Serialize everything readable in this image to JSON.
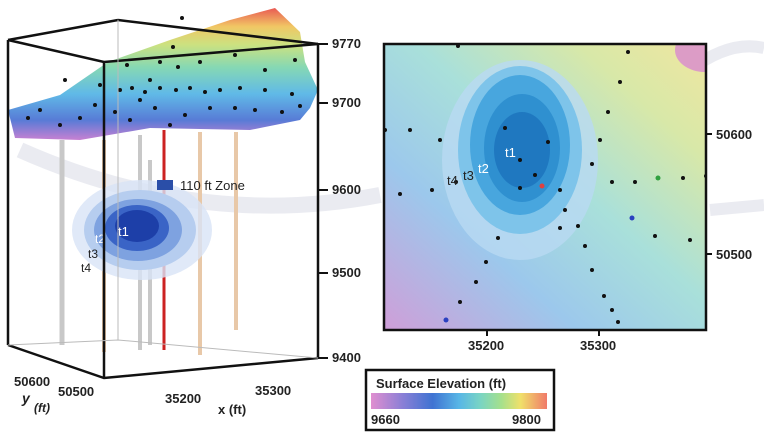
{
  "left_panel": {
    "z_ticks": [
      "9770",
      "9700",
      "9600",
      "9500",
      "9400"
    ],
    "x_ticks": [
      "35200",
      "35300"
    ],
    "x_label": "x (ft)",
    "y_ticks": [
      "50600",
      "50500"
    ],
    "y_label_y": "y",
    "y_label_ft": "(ft)",
    "zone_label": "110 ft Zone",
    "time_labels": [
      "t1",
      "t2",
      "t3",
      "t4"
    ]
  },
  "right_panel": {
    "x_ticks": [
      "35200",
      "35300"
    ],
    "y_ticks": [
      "50600",
      "50500"
    ],
    "time_labels": [
      "t1",
      "t2",
      "t3",
      "t4"
    ]
  },
  "legend": {
    "title": "Surface Elevation (ft)",
    "min": "9660",
    "max": "9800",
    "colors": [
      "#d98bc8",
      "#8a7fd6",
      "#3f73d2",
      "#58b6e6",
      "#79d4c4",
      "#9fe08e",
      "#f0e06a",
      "#f2a95f",
      "#f07a6a"
    ]
  }
}
